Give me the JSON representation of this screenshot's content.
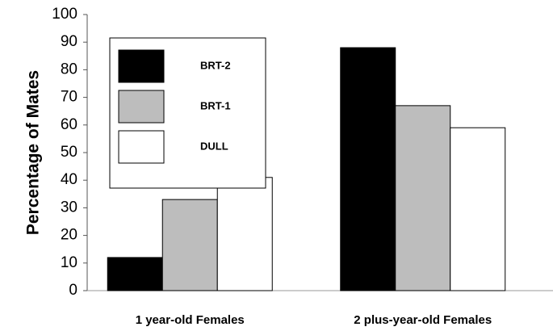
{
  "chart_data": {
    "type": "bar",
    "y_label": "Percentage of Mates",
    "categories": [
      "1 year-old Females",
      "2 plus-year-old Females"
    ],
    "series": [
      {
        "name": "BRT-2",
        "color": "#000000",
        "values": [
          12,
          88
        ]
      },
      {
        "name": "BRT-1",
        "color": "#bdbdbd",
        "values": [
          33,
          67
        ]
      },
      {
        "name": "DULL",
        "color": "#ffffff",
        "values": [
          41,
          59
        ]
      }
    ],
    "ylim": [
      0,
      100
    ],
    "yticks": [
      0,
      10,
      20,
      30,
      40,
      50,
      60,
      70,
      80,
      90,
      100
    ],
    "grid": false,
    "legend": "upper left"
  }
}
